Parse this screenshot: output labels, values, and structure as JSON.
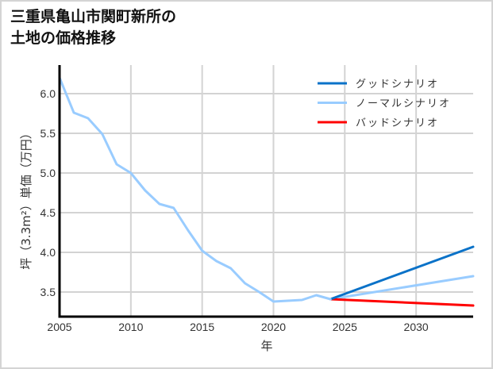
{
  "title": "三重県亀山市関町新所の\n土地の価格推移",
  "chart_data": {
    "type": "line",
    "title": "三重県亀山市関町新所の土地の価格推移",
    "xlabel": "年",
    "ylabel": "坪（3.3m²）単価（万円）",
    "xlim": [
      2005,
      2034
    ],
    "ylim": [
      3.19,
      6.36
    ],
    "x_ticks": [
      2005,
      2010,
      2015,
      2020,
      2025,
      2030
    ],
    "y_ticks": [
      3.5,
      4.0,
      4.5,
      5.0,
      5.5,
      6.0
    ],
    "y_tick_labels": [
      "3.5",
      "4.0",
      "4.5",
      "5.0",
      "5.5",
      "6.0"
    ],
    "grid": true,
    "legend_position": "upper right",
    "historical": {
      "color": "#99ccff",
      "x": [
        2005,
        2006,
        2007,
        2008,
        2009,
        2010,
        2011,
        2012,
        2013,
        2014,
        2015,
        2016,
        2017,
        2018,
        2019,
        2020,
        2021,
        2022,
        2023,
        2024
      ],
      "values": [
        6.2,
        5.76,
        5.69,
        5.49,
        5.11,
        5.0,
        4.78,
        4.61,
        4.56,
        4.28,
        4.02,
        3.89,
        3.8,
        3.61,
        3.5,
        3.38,
        3.39,
        3.4,
        3.46,
        3.41
      ]
    },
    "series": [
      {
        "name": "グッドシナリオ",
        "color": "#0a72c8",
        "x": [
          2024,
          2034
        ],
        "values": [
          3.41,
          4.07
        ]
      },
      {
        "name": "ノーマルシナリオ",
        "color": "#99ccff",
        "x": [
          2024,
          2034
        ],
        "values": [
          3.41,
          3.7
        ]
      },
      {
        "name": "バッドシナリオ",
        "color": "#ff0000",
        "x": [
          2024,
          2034
        ],
        "values": [
          3.41,
          3.33
        ]
      }
    ]
  }
}
